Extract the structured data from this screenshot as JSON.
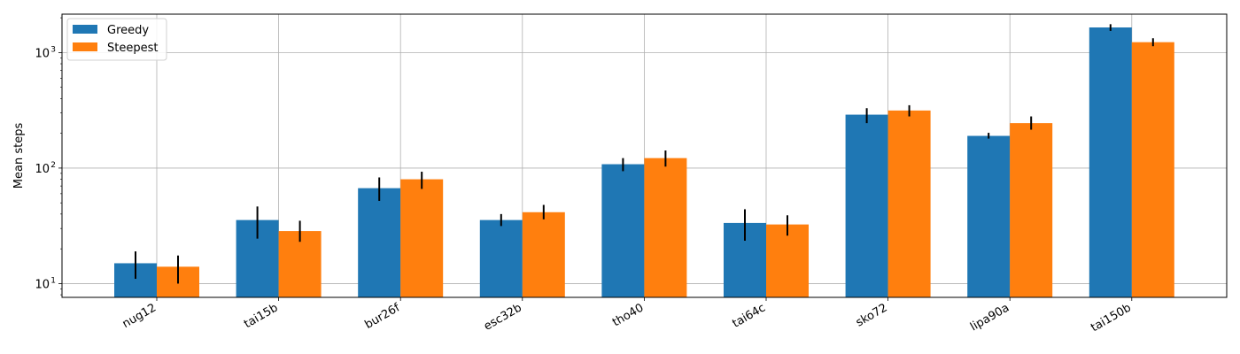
{
  "chart_data": {
    "type": "bar",
    "yscale": "log",
    "ylabel": "Mean steps",
    "xlabel": "",
    "title": "",
    "ylim": [
      7.6,
      2150
    ],
    "grid": true,
    "legend_position": "top-left",
    "yticks": [
      {
        "value": 10,
        "base": "10",
        "exp": "1"
      },
      {
        "value": 100,
        "base": "10",
        "exp": "2"
      },
      {
        "value": 1000,
        "base": "10",
        "exp": "3"
      }
    ],
    "categories": [
      "nug12",
      "tai15b",
      "bur26f",
      "esc32b",
      "tho40",
      "tai64c",
      "sko72",
      "lipa90a",
      "tai150b"
    ],
    "series": [
      {
        "name": "Greedy",
        "color": "#1f77b4",
        "values": [
          15,
          35.5,
          67,
          35.5,
          108,
          33.5,
          290,
          190,
          1650
        ],
        "err_low": [
          11,
          24.5,
          52,
          31.5,
          94,
          23.5,
          245,
          180,
          1540
        ],
        "err_high": [
          19,
          46.5,
          83,
          40,
          122,
          44,
          330,
          202,
          1760
        ]
      },
      {
        "name": "Steepest",
        "color": "#ff7f0e",
        "values": [
          14,
          28.5,
          80,
          41.5,
          122,
          32.5,
          315,
          245,
          1230
        ],
        "err_low": [
          10,
          23,
          66,
          36,
          103,
          26,
          280,
          215,
          1135
        ],
        "err_high": [
          17.5,
          35,
          93,
          48,
          142,
          39,
          350,
          280,
          1330
        ]
      }
    ]
  }
}
